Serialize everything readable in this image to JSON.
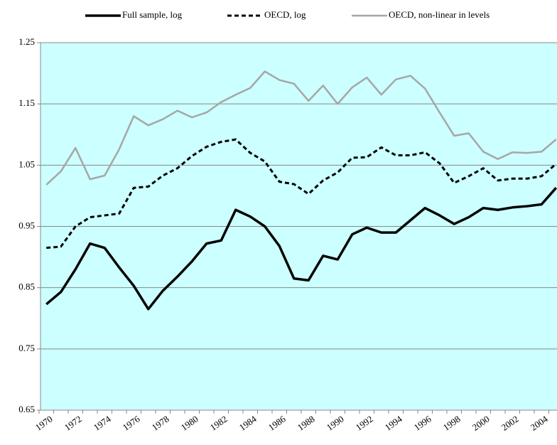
{
  "chart_data": {
    "type": "line",
    "categories": [
      "1970",
      null,
      "1972",
      null,
      "1974",
      null,
      "1976",
      null,
      "1978",
      null,
      "1980",
      null,
      "1982",
      null,
      "1984",
      null,
      "1986",
      null,
      "1988",
      null,
      "1990",
      null,
      "1992",
      null,
      "1994",
      null,
      "1996",
      null,
      "1998",
      null,
      "2000",
      null,
      "2002",
      null,
      "2004",
      null
    ],
    "series": [
      {
        "name": "Full sample, log",
        "color": "#000000",
        "style": "solid",
        "width": 3.5,
        "values": [
          0.823,
          0.843,
          0.88,
          0.922,
          0.915,
          0.883,
          0.853,
          0.815,
          0.845,
          0.868,
          0.893,
          0.922,
          0.927,
          0.977,
          0.966,
          0.95,
          0.918,
          0.865,
          0.862,
          0.902,
          0.896,
          0.937,
          0.948,
          0.94,
          0.94,
          0.96,
          0.98,
          0.968,
          0.954,
          0.965,
          0.98,
          0.977,
          0.981,
          0.983,
          0.986,
          1.013
        ]
      },
      {
        "name": "OECD, log",
        "color": "#000000",
        "style": "dashed",
        "width": 3,
        "values": [
          0.915,
          0.917,
          0.95,
          0.965,
          0.968,
          0.971,
          1.013,
          1.015,
          1.033,
          1.045,
          1.065,
          1.08,
          1.088,
          1.092,
          1.07,
          1.056,
          1.023,
          1.019,
          1.003,
          1.025,
          1.038,
          1.062,
          1.063,
          1.079,
          1.066,
          1.066,
          1.071,
          1.053,
          1.021,
          1.032,
          1.045,
          1.025,
          1.028,
          1.028,
          1.032,
          1.052
        ]
      },
      {
        "name": "OECD, non-linear in levels",
        "color": "#a6a6a6",
        "style": "solid",
        "width": 2.5,
        "values": [
          1.018,
          1.04,
          1.078,
          1.027,
          1.033,
          1.076,
          1.13,
          1.115,
          1.125,
          1.139,
          1.128,
          1.136,
          1.153,
          1.165,
          1.176,
          1.203,
          1.189,
          1.183,
          1.155,
          1.18,
          1.15,
          1.177,
          1.193,
          1.165,
          1.19,
          1.196,
          1.175,
          1.136,
          1.098,
          1.102,
          1.072,
          1.06,
          1.071,
          1.07,
          1.072,
          1.092
        ]
      }
    ],
    "ylim": [
      0.65,
      1.25
    ],
    "yticks": [
      0.65,
      0.75,
      0.85,
      0.95,
      1.05,
      1.15,
      1.25
    ],
    "grid": true,
    "background": "#ccffff",
    "legend": "top"
  }
}
